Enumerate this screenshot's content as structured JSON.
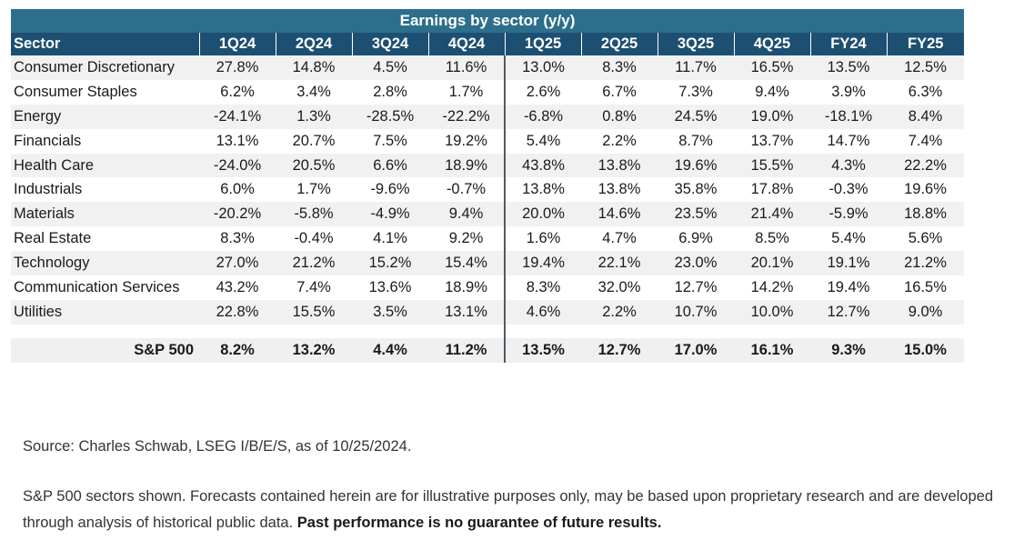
{
  "chart_data": {
    "type": "table",
    "title": "Earnings by sector (y/y)",
    "columns": [
      "Sector",
      "1Q24",
      "2Q24",
      "3Q24",
      "4Q24",
      "1Q25",
      "2Q25",
      "3Q25",
      "4Q25",
      "FY24",
      "FY25"
    ],
    "rows": [
      {
        "sector": "Consumer Discretionary",
        "values": [
          "27.8%",
          "14.8%",
          "4.5%",
          "11.6%",
          "13.0%",
          "8.3%",
          "11.7%",
          "16.5%",
          "13.5%",
          "12.5%"
        ]
      },
      {
        "sector": "Consumer Staples",
        "values": [
          "6.2%",
          "3.4%",
          "2.8%",
          "1.7%",
          "2.6%",
          "6.7%",
          "7.3%",
          "9.4%",
          "3.9%",
          "6.3%"
        ]
      },
      {
        "sector": "Energy",
        "values": [
          "-24.1%",
          "1.3%",
          "-28.5%",
          "-22.2%",
          "-6.8%",
          "0.8%",
          "24.5%",
          "19.0%",
          "-18.1%",
          "8.4%"
        ]
      },
      {
        "sector": "Financials",
        "values": [
          "13.1%",
          "20.7%",
          "7.5%",
          "19.2%",
          "5.4%",
          "2.2%",
          "8.7%",
          "13.7%",
          "14.7%",
          "7.4%"
        ]
      },
      {
        "sector": "Health Care",
        "values": [
          "-24.0%",
          "20.5%",
          "6.6%",
          "18.9%",
          "43.8%",
          "13.8%",
          "19.6%",
          "15.5%",
          "4.3%",
          "22.2%"
        ]
      },
      {
        "sector": "Industrials",
        "values": [
          "6.0%",
          "1.7%",
          "-9.6%",
          "-0.7%",
          "13.8%",
          "13.8%",
          "35.8%",
          "17.8%",
          "-0.3%",
          "19.6%"
        ]
      },
      {
        "sector": "Materials",
        "values": [
          "-20.2%",
          "-5.8%",
          "-4.9%",
          "9.4%",
          "20.0%",
          "14.6%",
          "23.5%",
          "21.4%",
          "-5.9%",
          "18.8%"
        ]
      },
      {
        "sector": "Real Estate",
        "values": [
          "8.3%",
          "-0.4%",
          "4.1%",
          "9.2%",
          "1.6%",
          "4.7%",
          "6.9%",
          "8.5%",
          "5.4%",
          "5.6%"
        ]
      },
      {
        "sector": "Technology",
        "values": [
          "27.0%",
          "21.2%",
          "15.2%",
          "15.4%",
          "19.4%",
          "22.1%",
          "23.0%",
          "20.1%",
          "19.1%",
          "21.2%"
        ]
      },
      {
        "sector": "Communication Services",
        "values": [
          "43.2%",
          "7.4%",
          "13.6%",
          "18.9%",
          "8.3%",
          "32.0%",
          "12.7%",
          "14.2%",
          "19.4%",
          "16.5%"
        ]
      },
      {
        "sector": "Utilities",
        "values": [
          "22.8%",
          "15.5%",
          "3.5%",
          "13.1%",
          "4.6%",
          "2.2%",
          "10.7%",
          "10.0%",
          "12.7%",
          "9.0%"
        ]
      }
    ],
    "total": {
      "sector": "S&P 500",
      "values": [
        "8.2%",
        "13.2%",
        "4.4%",
        "11.2%",
        "13.5%",
        "12.7%",
        "17.0%",
        "16.1%",
        "9.3%",
        "15.0%"
      ]
    }
  },
  "footnotes": {
    "source": "Source: Charles Schwab, LSEG I/B/E/S, as of 10/25/2024.",
    "disclaimer": "S&P 500 sectors shown. Forecasts contained herein are for illustrative purposes only, may be based upon proprietary research and are developed through analysis of historical public data.",
    "disclaimer_bold": "Past performance is no guarantee of future results."
  },
  "colors": {
    "title_bar": "#2c6e8c",
    "header_row": "#1d4f73",
    "row_stripe": "#f1f1f2",
    "total_row": "#eef0f1"
  }
}
